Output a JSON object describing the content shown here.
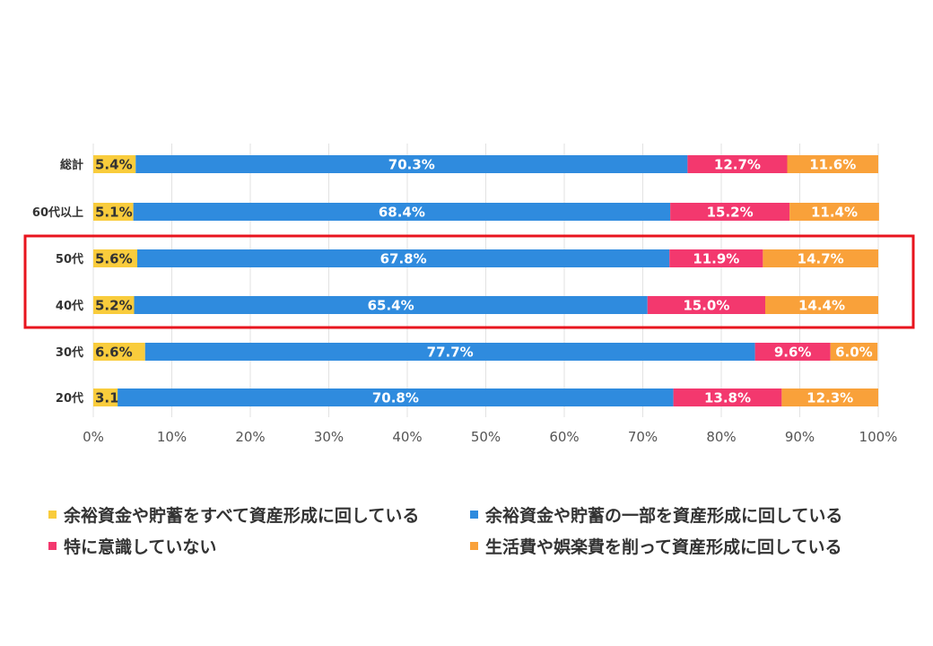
{
  "chart_data": {
    "type": "bar",
    "orientation": "horizontal",
    "stacked": true,
    "categories": [
      "総計",
      "60代以上",
      "50代",
      "40代",
      "30代",
      "20代"
    ],
    "series": [
      {
        "name": "余裕資金や貯蓄をすべて資産形成に回している",
        "color": "#F9CC3C",
        "values": [
          5.4,
          5.1,
          5.6,
          5.2,
          6.6,
          3.1
        ],
        "labels": [
          "5.4%",
          "5.1%",
          "5.6%",
          "5.2%",
          "6.6%",
          "3.1%"
        ]
      },
      {
        "name": "余裕資金や貯蓄の一部を資産形成に回している",
        "color": "#2F8BDE",
        "values": [
          70.3,
          68.4,
          67.8,
          65.4,
          77.7,
          70.8
        ],
        "labels": [
          "70.3%",
          "68.4%",
          "67.8%",
          "65.4%",
          "77.7%",
          "70.8%"
        ]
      },
      {
        "name": "特に意識していない",
        "color": "#F3386E",
        "values": [
          12.7,
          15.2,
          11.9,
          15.0,
          9.6,
          13.8
        ],
        "labels": [
          "12.7%",
          "15.2%",
          "11.9%",
          "15.0%",
          "9.6%",
          "13.8%"
        ]
      },
      {
        "name": "生活費や娯楽費を削って資産形成に回している",
        "color": "#F9A13A",
        "values": [
          11.6,
          11.4,
          14.7,
          14.4,
          6.0,
          12.3
        ],
        "labels": [
          "11.6%",
          "11.4%",
          "14.7%",
          "14.4%",
          "6.0%",
          "12.3%"
        ]
      }
    ],
    "xlim": [
      0,
      100
    ],
    "xticks": [
      "0%",
      "10%",
      "20%",
      "30%",
      "40%",
      "50%",
      "60%",
      "70%",
      "80%",
      "90%",
      "100%"
    ],
    "grid": true,
    "legend_position": "bottom",
    "highlight": {
      "categories": [
        "50代",
        "40代"
      ],
      "color": "#E8141E"
    }
  }
}
